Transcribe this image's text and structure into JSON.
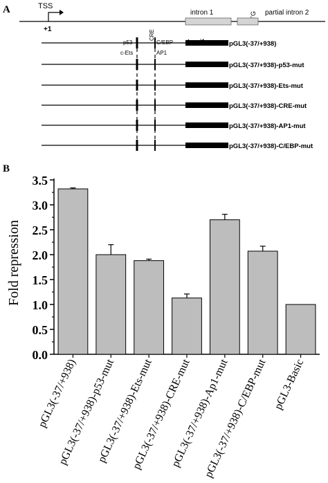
{
  "panel_a": {
    "label": "A",
    "tss": "TSS",
    "plus_one": "+1",
    "intron1": "intron 1",
    "atg": "ATG",
    "partial_intron2": "partial intron 2",
    "luciferase": "Luciferase",
    "sites": {
      "p53": "p53",
      "cre": "CRE",
      "cebp": "C/EBP",
      "cets": "c-Ets",
      "ap1": "AP1"
    },
    "constructs": [
      "pGL3(-37/+938)",
      "pGL3(-37/+938)-p53-mut",
      "pGL3(-37/+938)-Ets-mut",
      "pGL3(-37/+938)-CRE-mut",
      "pGL3(-37/+938)-AP1-mut",
      "pGL3(-37/+938)-C/EBP-mut"
    ]
  },
  "panel_b": {
    "label": "B"
  },
  "chart_data": {
    "type": "bar",
    "categories": [
      "pGL3(-37/+938)",
      "pGL3(-37/+938)-p53-mut",
      "pGL3(-37/+938)-Ets-mut",
      "pGL3(-37/+938)-CRE-mut",
      "pGL3(-37/+938)-Ap1-mut",
      "pGL3(-37/+938)-C/EBP-mut",
      "pGL3-Basic"
    ],
    "values": [
      3.32,
      2.0,
      1.88,
      1.13,
      2.7,
      2.07,
      1.0
    ],
    "errors": [
      0.02,
      0.2,
      0.03,
      0.08,
      0.11,
      0.1,
      0
    ],
    "ylabel": "Fold repression",
    "ylim": [
      0,
      3.5
    ],
    "yticks": [
      "0.0",
      "0.5",
      "1.0",
      "1.5",
      "2.0",
      "2.5",
      "3.0",
      "3.5"
    ],
    "bar_color": "#bdbdbd",
    "grid": false
  }
}
